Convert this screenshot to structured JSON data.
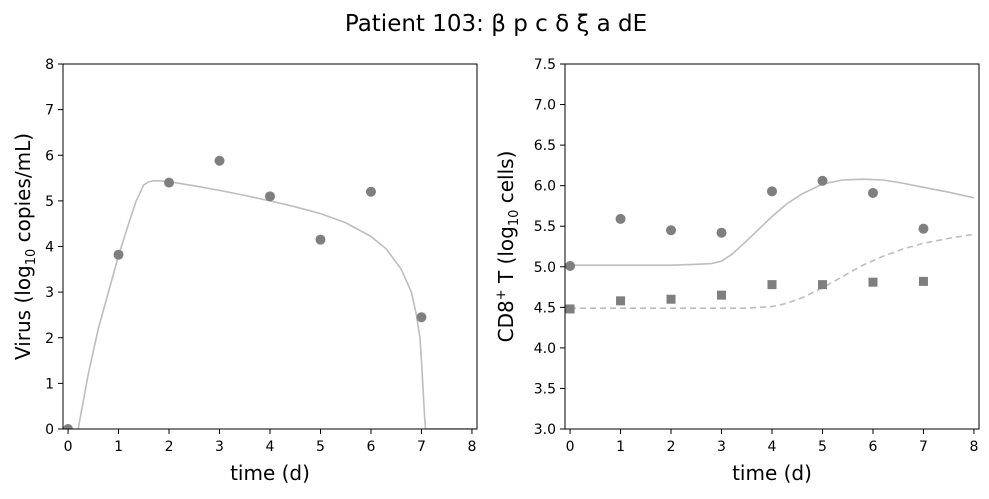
{
  "figure": {
    "title": "Patient 103: β p c δ ξ a dE"
  },
  "chart_data": [
    {
      "type": "line",
      "title": "",
      "xlabel": "time (d)",
      "ylabel_parts": {
        "pre": "Virus (log",
        "sub": "10",
        "post": " copies/mL)"
      },
      "xlim": [
        -0.1,
        8.1
      ],
      "ylim": [
        0,
        8
      ],
      "xticks": [
        "0",
        "1",
        "2",
        "3",
        "4",
        "5",
        "6",
        "7",
        "8"
      ],
      "yticks": [
        "0",
        "1",
        "2",
        "3",
        "4",
        "5",
        "6",
        "7",
        "8"
      ],
      "grid": false,
      "series": [
        {
          "kind": "model",
          "style": "solid",
          "color": "#bdbdbd",
          "x": [
            0.2,
            0.4,
            0.6,
            0.8,
            1.0,
            1.2,
            1.35,
            1.5,
            1.6,
            1.7,
            1.8,
            2.0,
            2.5,
            3.0,
            3.5,
            4.0,
            4.5,
            5.0,
            5.5,
            6.0,
            6.3,
            6.6,
            6.8,
            6.9,
            6.97,
            7.0,
            7.03,
            7.06,
            7.08,
            8.1
          ],
          "values": [
            0.0,
            1.2,
            2.2,
            3.0,
            3.8,
            4.5,
            5.0,
            5.35,
            5.42,
            5.44,
            5.44,
            5.42,
            5.33,
            5.23,
            5.12,
            5.0,
            4.87,
            4.72,
            4.52,
            4.22,
            3.95,
            3.5,
            3.0,
            2.5,
            2.0,
            1.5,
            0.9,
            0.3,
            0.0,
            0.0
          ]
        },
        {
          "kind": "data",
          "marker": "circle",
          "color": "#7f7f7f",
          "x": [
            0,
            1,
            2,
            3,
            4,
            5,
            6,
            7
          ],
          "values": [
            0.0,
            3.82,
            5.4,
            5.88,
            5.1,
            4.15,
            5.2,
            2.45
          ]
        }
      ]
    },
    {
      "type": "line",
      "title": "",
      "xlabel": "time (d)",
      "ylabel_parts": {
        "pre": "CD8",
        "sup": "+",
        "mid": " T (log",
        "sub": "10",
        "post": " cells)"
      },
      "xlim": [
        -0.1,
        8.1
      ],
      "ylim": [
        3.0,
        7.5
      ],
      "xticks": [
        "0",
        "1",
        "2",
        "3",
        "4",
        "5",
        "6",
        "7",
        "8"
      ],
      "yticks": [
        "3.0",
        "3.5",
        "4.0",
        "4.5",
        "5.0",
        "5.5",
        "6.0",
        "6.5",
        "7.0",
        "7.5"
      ],
      "grid": false,
      "series": [
        {
          "kind": "model",
          "style": "solid",
          "color": "#bdbdbd",
          "x": [
            0,
            1,
            2,
            2.5,
            2.8,
            3.0,
            3.2,
            3.5,
            3.8,
            4.0,
            4.3,
            4.6,
            5.0,
            5.4,
            5.8,
            6.2,
            6.6,
            7.0,
            7.5,
            8.0
          ],
          "values": [
            5.02,
            5.02,
            5.02,
            5.03,
            5.04,
            5.07,
            5.15,
            5.32,
            5.5,
            5.62,
            5.78,
            5.9,
            6.02,
            6.07,
            6.08,
            6.07,
            6.03,
            5.98,
            5.92,
            5.85
          ]
        },
        {
          "kind": "model",
          "style": "dashed",
          "color": "#bdbdbd",
          "x": [
            0,
            1,
            2,
            3,
            3.5,
            4.0,
            4.3,
            4.6,
            5.0,
            5.4,
            5.8,
            6.2,
            6.6,
            7.0,
            7.5,
            8.0
          ],
          "values": [
            4.49,
            4.49,
            4.49,
            4.49,
            4.49,
            4.51,
            4.55,
            4.62,
            4.74,
            4.88,
            5.02,
            5.13,
            5.22,
            5.29,
            5.35,
            5.4
          ]
        },
        {
          "kind": "data",
          "marker": "circle",
          "color": "#7f7f7f",
          "x": [
            0,
            1,
            2,
            3,
            4,
            5,
            6,
            7
          ],
          "values": [
            5.01,
            5.59,
            5.45,
            5.42,
            5.93,
            6.06,
            5.91,
            5.47
          ]
        },
        {
          "kind": "data",
          "marker": "square",
          "color": "#7f7f7f",
          "x": [
            0,
            1,
            2,
            3,
            4,
            5,
            6,
            7
          ],
          "values": [
            4.48,
            4.58,
            4.6,
            4.65,
            4.78,
            4.78,
            4.81,
            4.82
          ]
        }
      ]
    }
  ]
}
